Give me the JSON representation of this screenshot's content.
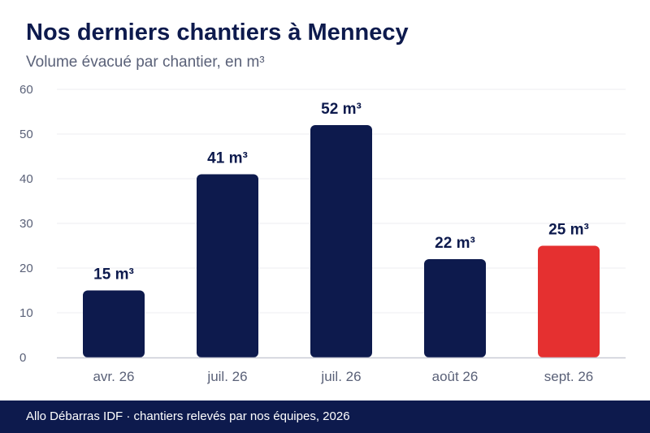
{
  "header": {
    "title": "Nos derniers chantiers à Mennecy",
    "subtitle": "Volume évacué par chantier, en m³"
  },
  "footer": {
    "text": "Allo Débarras IDF · chantiers relevés par nos équipes, 2026"
  },
  "colors": {
    "primary_bar": "#0d1a4d",
    "highlight_bar": "#e53030",
    "grid": "#ececf0",
    "axis_text": "#5a6178"
  },
  "chart_data": {
    "type": "bar",
    "categories": [
      "avr. 26",
      "juil. 26",
      "juil. 26",
      "août 26",
      "sept. 26"
    ],
    "values": [
      15,
      41,
      52,
      22,
      25
    ],
    "data_labels": [
      "15 m³",
      "41 m³",
      "52 m³",
      "22 m³",
      "25 m³"
    ],
    "highlight_index": 4,
    "ylim": [
      0,
      60
    ],
    "yticks": [
      0,
      10,
      20,
      30,
      40,
      50,
      60
    ],
    "grid": true,
    "legend": "none",
    "unit": "m³"
  }
}
